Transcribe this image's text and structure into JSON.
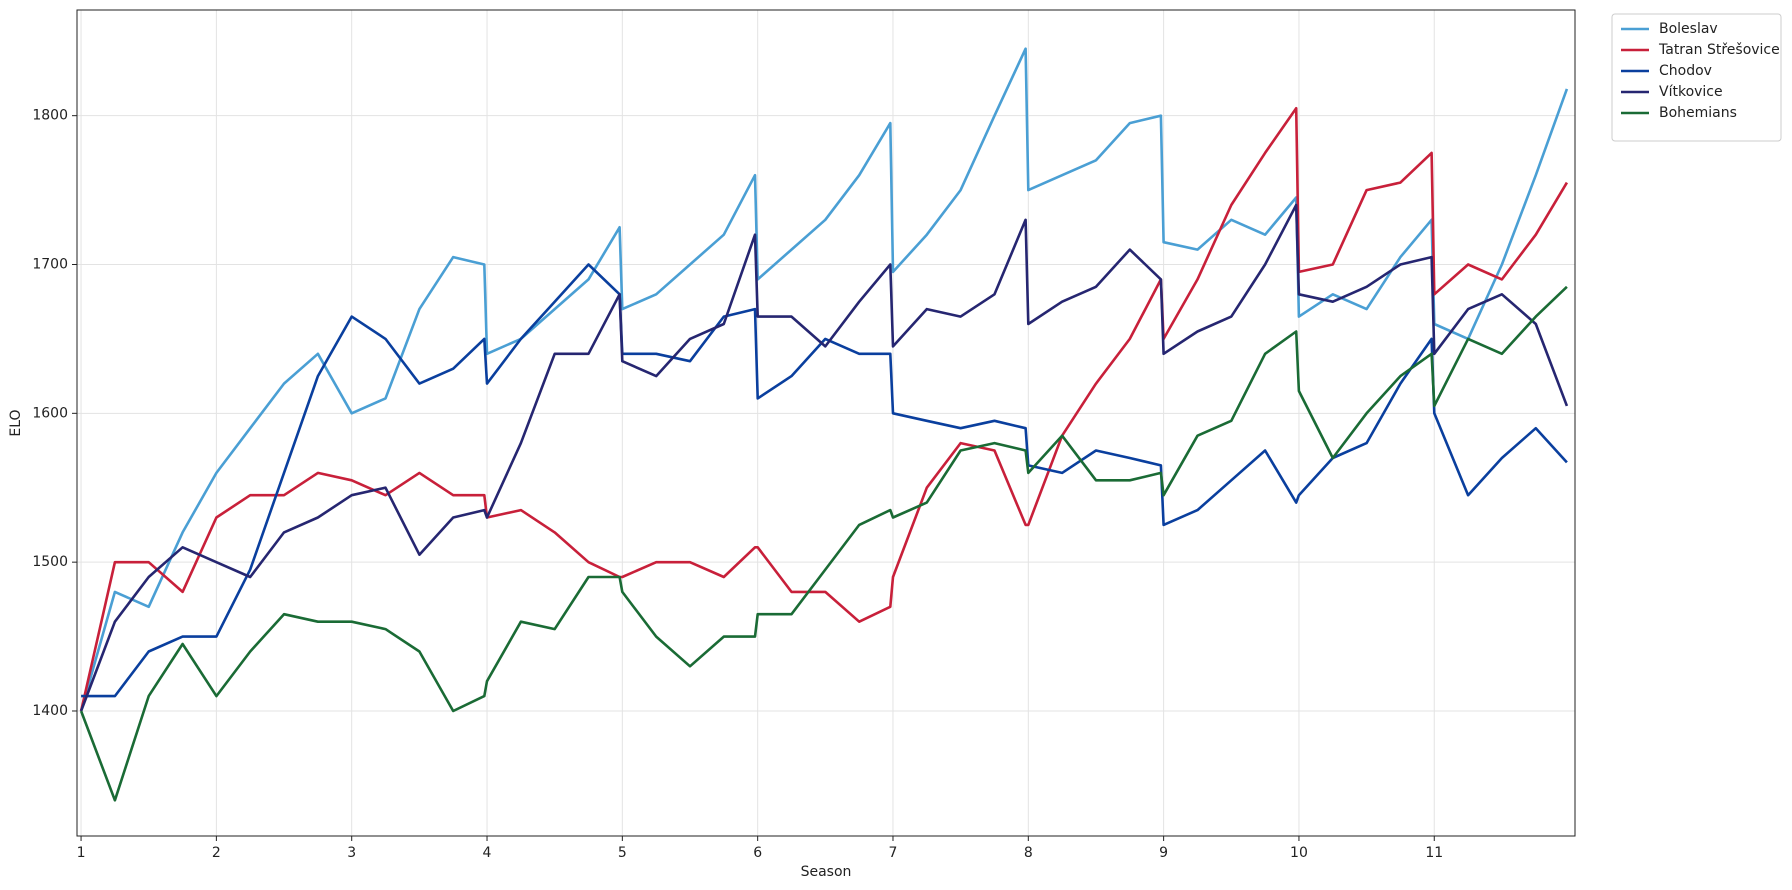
{
  "chart_data": {
    "type": "line",
    "x_label": "Season",
    "y_label": "ELO",
    "x": [
      1,
      1.25,
      1.5,
      1.75,
      2,
      2.25,
      2.5,
      2.75,
      3,
      3.25,
      3.5,
      3.75,
      3.98,
      4,
      4.25,
      4.5,
      4.75,
      4.98,
      5,
      5.25,
      5.5,
      5.75,
      5.98,
      6,
      6.25,
      6.5,
      6.75,
      6.98,
      7,
      7.25,
      7.5,
      7.75,
      7.98,
      8,
      8.25,
      8.5,
      8.75,
      8.98,
      9,
      9.25,
      9.5,
      9.75,
      9.98,
      10,
      10.25,
      10.5,
      10.75,
      10.98,
      11,
      11.25,
      11.5,
      11.75,
      11.98
    ],
    "series": [
      {
        "name": "Boleslav",
        "color": "#4a9fd4",
        "values": [
          1400,
          1480,
          1470,
          1520,
          1560,
          1590,
          1620,
          1640,
          1600,
          1610,
          1670,
          1705,
          1700,
          1640,
          1650,
          1670,
          1690,
          1725,
          1670,
          1680,
          1700,
          1720,
          1760,
          1690,
          1710,
          1730,
          1760,
          1795,
          1695,
          1720,
          1750,
          1800,
          1845,
          1750,
          1760,
          1770,
          1795,
          1800,
          1715,
          1710,
          1730,
          1720,
          1745,
          1665,
          1680,
          1670,
          1705,
          1730,
          1660,
          1650,
          1700,
          1760,
          1818
        ]
      },
      {
        "name": "Tatran Střešovice",
        "color": "#c8203a",
        "values": [
          1400,
          1500,
          1500,
          1480,
          1530,
          1545,
          1545,
          1560,
          1555,
          1545,
          1560,
          1545,
          1545,
          1530,
          1535,
          1520,
          1500,
          1490,
          1490,
          1500,
          1500,
          1490,
          1510,
          1510,
          1480,
          1480,
          1460,
          1470,
          1490,
          1550,
          1580,
          1575,
          1525,
          1525,
          1585,
          1620,
          1650,
          1690,
          1650,
          1690,
          1740,
          1775,
          1805,
          1695,
          1700,
          1750,
          1755,
          1775,
          1680,
          1700,
          1690,
          1720,
          1755
        ]
      },
      {
        "name": "Chodov",
        "color": "#0a3f9e",
        "values": [
          1410,
          1410,
          1440,
          1450,
          1450,
          1495,
          1560,
          1625,
          1665,
          1650,
          1620,
          1630,
          1650,
          1620,
          1650,
          1675,
          1700,
          1680,
          1640,
          1640,
          1635,
          1665,
          1670,
          1610,
          1625,
          1650,
          1640,
          1640,
          1600,
          1595,
          1590,
          1595,
          1590,
          1565,
          1560,
          1575,
          1570,
          1565,
          1525,
          1535,
          1555,
          1575,
          1540,
          1545,
          1570,
          1580,
          1620,
          1650,
          1600,
          1545,
          1570,
          1590,
          1567
        ]
      },
      {
        "name": "Vítkovice",
        "color": "#262671",
        "values": [
          1400,
          1460,
          1490,
          1510,
          1500,
          1490,
          1520,
          1530,
          1545,
          1550,
          1505,
          1530,
          1535,
          1530,
          1580,
          1640,
          1640,
          1680,
          1635,
          1625,
          1650,
          1660,
          1720,
          1665,
          1665,
          1645,
          1675,
          1700,
          1645,
          1670,
          1665,
          1680,
          1730,
          1660,
          1675,
          1685,
          1710,
          1690,
          1640,
          1655,
          1665,
          1700,
          1740,
          1680,
          1675,
          1685,
          1700,
          1705,
          1640,
          1670,
          1680,
          1660,
          1605
        ]
      },
      {
        "name": "Bohemians",
        "color": "#1a6b35",
        "values": [
          1400,
          1340,
          1410,
          1445,
          1410,
          1440,
          1465,
          1460,
          1460,
          1455,
          1440,
          1400,
          1410,
          1420,
          1460,
          1455,
          1490,
          1490,
          1480,
          1450,
          1430,
          1450,
          1450,
          1465,
          1465,
          1495,
          1525,
          1535,
          1530,
          1540,
          1575,
          1580,
          1575,
          1560,
          1585,
          1555,
          1555,
          1560,
          1545,
          1585,
          1595,
          1640,
          1655,
          1615,
          1570,
          1600,
          1625,
          1640,
          1605,
          1650,
          1640,
          1665,
          1685
        ]
      }
    ],
    "xlim": [
      0.97,
      12.04
    ],
    "ylim": [
      1316,
      1871
    ],
    "xticks": [
      1,
      2,
      3,
      4,
      5,
      6,
      7,
      8,
      9,
      10,
      11
    ],
    "yticks": [
      1400,
      1500,
      1600,
      1700,
      1800
    ],
    "grid": true,
    "legend": "outside-upper-right"
  }
}
